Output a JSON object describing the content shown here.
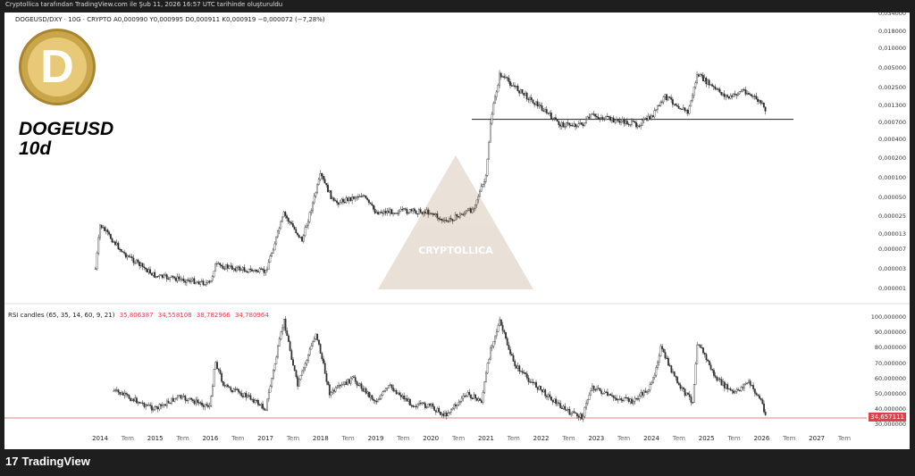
{
  "header": {
    "caption": "Cryptollica tarafından TradingView.com ile Şub 11, 2026 16:57 UTC tarihinde oluşturuldu"
  },
  "legend": {
    "text": "DOGEUSD/DXY · 10G · CRYPTO  A0,000990  Y0,000995  D0,000911  K0,000919  −0,000072 (−7,28%)"
  },
  "symbol": {
    "name": "DOGEUSD",
    "interval": "10d",
    "logo_letter": "D"
  },
  "watermark": {
    "text": "CRYPTOLLICA"
  },
  "price_axis": {
    "scale": "log",
    "ticks": [
      "0,034000",
      "0,018000",
      "0,010000",
      "0,005000",
      "0,002500",
      "0,001300",
      "0,000700",
      "0,000400",
      "0,000200",
      "0,000100",
      "0,000050",
      "0,000025",
      "0,000013",
      "0,000007",
      "0,000003",
      "0,000001"
    ]
  },
  "rsi": {
    "label": "RSI candles (65, 35, 14, 60, 9, 21)",
    "values": [
      "35,806387",
      "34,558108",
      "38,782966",
      "34,780964"
    ],
    "ticks": [
      "100,000000",
      "90,000000",
      "80,000000",
      "70,000000",
      "60,000000",
      "50,000000",
      "40,000000",
      "30,000000"
    ],
    "last": "34,657111",
    "last_color": "#e0404a"
  },
  "time_axis": [
    "2014",
    "Tem",
    "2015",
    "Tem",
    "2016",
    "Tem",
    "2017",
    "Tem",
    "2018",
    "Tem",
    "2019",
    "Tem",
    "2020",
    "Tem",
    "2021",
    "Tem",
    "2022",
    "Tem",
    "2023",
    "Tem",
    "2024",
    "Tem",
    "2025",
    "Tem",
    "2026",
    "Tem",
    "2027",
    "Tem"
  ],
  "horizontal_line": {
    "price": 0.00078
  },
  "price_series": [
    [
      "2013-12",
      3e-06
    ],
    [
      "2014-01",
      1.8e-05
    ],
    [
      "2014-06",
      6e-06
    ],
    [
      "2015-01",
      2e-06
    ],
    [
      "2015-08",
      1.6e-06
    ],
    [
      "2016-01",
      1.3e-06
    ],
    [
      "2016-02",
      3.5e-06
    ],
    [
      "2016-09",
      2.8e-06
    ],
    [
      "2017-01",
      2.5e-06
    ],
    [
      "2017-05",
      2.7e-05
    ],
    [
      "2017-09",
      1e-05
    ],
    [
      "2018-01",
      0.00011
    ],
    [
      "2018-04",
      4e-05
    ],
    [
      "2018-10",
      5.5e-05
    ],
    [
      "2019-01",
      2.9e-05
    ],
    [
      "2019-07",
      3e-05
    ],
    [
      "2020-01",
      2.9e-05
    ],
    [
      "2020-04",
      2e-05
    ],
    [
      "2020-10",
      3.2e-05
    ],
    [
      "2021-01",
      0.0001
    ],
    [
      "2021-02",
      0.00075
    ],
    [
      "2021-04",
      0.004
    ],
    [
      "2021-08",
      0.0023
    ],
    [
      "2022-01",
      0.0012
    ],
    [
      "2022-05",
      0.00065
    ],
    [
      "2022-10",
      0.00065
    ],
    [
      "2022-12",
      0.0009
    ],
    [
      "2023-04",
      0.00078
    ],
    [
      "2023-10",
      0.00065
    ],
    [
      "2024-01",
      0.00085
    ],
    [
      "2024-04",
      0.0018
    ],
    [
      "2024-09",
      0.001
    ],
    [
      "2024-11",
      0.004
    ],
    [
      "2025-03",
      0.0023
    ],
    [
      "2025-06",
      0.0017
    ],
    [
      "2025-09",
      0.0023
    ],
    [
      "2026-01",
      0.0014
    ],
    [
      "2026-02",
      0.00092
    ]
  ],
  "rsi_series": [
    [
      "2014-04",
      52
    ],
    [
      "2015-01",
      40
    ],
    [
      "2015-06",
      48
    ],
    [
      "2016-01",
      42
    ],
    [
      "2016-02",
      72
    ],
    [
      "2016-04",
      55
    ],
    [
      "2016-10",
      47
    ],
    [
      "2017-01",
      40
    ],
    [
      "2017-05",
      98
    ],
    [
      "2017-08",
      55
    ],
    [
      "2017-12",
      90
    ],
    [
      "2018-03",
      50
    ],
    [
      "2018-08",
      60
    ],
    [
      "2019-01",
      45
    ],
    [
      "2019-04",
      55
    ],
    [
      "2019-09",
      43
    ],
    [
      "2020-01",
      42
    ],
    [
      "2020-04",
      36
    ],
    [
      "2020-09",
      50
    ],
    [
      "2020-12",
      45
    ],
    [
      "2021-02",
      80
    ],
    [
      "2021-04",
      97
    ],
    [
      "2021-07",
      70
    ],
    [
      "2021-10",
      60
    ],
    [
      "2022-04",
      45
    ],
    [
      "2022-07",
      38
    ],
    [
      "2022-10",
      35
    ],
    [
      "2022-12",
      55
    ],
    [
      "2023-04",
      48
    ],
    [
      "2023-09",
      45
    ],
    [
      "2024-01",
      55
    ],
    [
      "2024-03",
      80
    ],
    [
      "2024-07",
      55
    ],
    [
      "2024-10",
      45
    ],
    [
      "2024-11",
      85
    ],
    [
      "2025-03",
      60
    ],
    [
      "2025-07",
      50
    ],
    [
      "2025-10",
      58
    ],
    [
      "2026-01",
      45
    ],
    [
      "2026-02",
      35
    ]
  ],
  "footer": {
    "brand": "TradingView"
  }
}
